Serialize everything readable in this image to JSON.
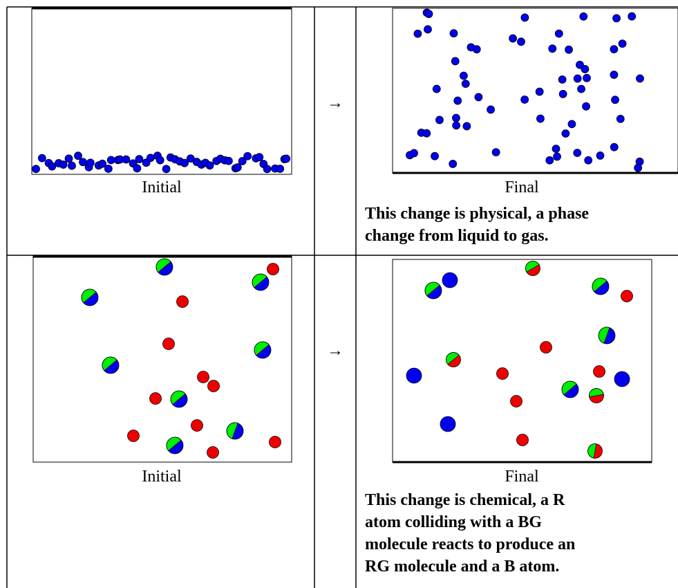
{
  "rows": [
    {
      "initial_label": "Initial",
      "arrow": "→",
      "final_label": "Final",
      "description": [
        "This change is physical, a phase",
        "change from liquid to gas."
      ]
    },
    {
      "initial_label": "Initial",
      "arrow": "→",
      "final_label": "Final",
      "description": [
        "This change is chemical, a R",
        "atom colliding with a BG",
        "molecule reacts to produce an",
        "RG molecule and a B atom."
      ]
    }
  ]
}
